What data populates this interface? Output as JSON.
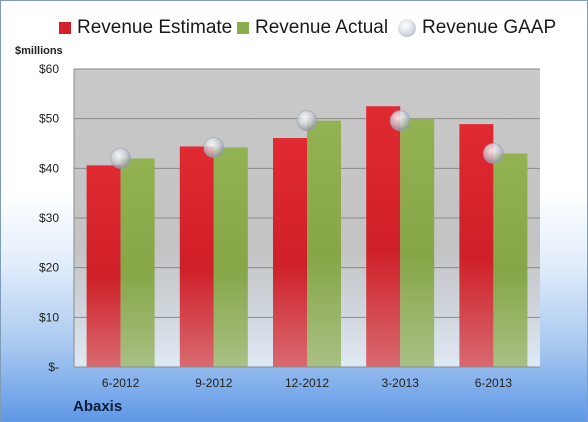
{
  "chart_data": {
    "type": "bar",
    "categories": [
      "6-2012",
      "9-2012",
      "12-2012",
      "3-2013",
      "6-2013"
    ],
    "series": [
      {
        "name": "Revenue Estimate",
        "kind": "bar",
        "color": "#d4202a",
        "values": [
          40.6,
          44.4,
          46.1,
          52.5,
          48.9
        ]
      },
      {
        "name": "Revenue Actual",
        "kind": "bar",
        "color": "#8dac4c",
        "values": [
          42.0,
          44.2,
          49.6,
          50.0,
          43.0
        ]
      },
      {
        "name": "Revenue GAAP",
        "kind": "scatter",
        "color": "#c8cad4",
        "values": [
          42.0,
          44.2,
          49.6,
          49.6,
          43.0
        ]
      }
    ],
    "ylabel": "$millions",
    "ylim": [
      0,
      60
    ],
    "yticks": [
      0,
      10,
      20,
      30,
      40,
      50,
      60
    ],
    "ytick_labels": [
      "$-",
      "$10",
      "$20",
      "$30",
      "$40",
      "$50",
      "$60"
    ],
    "grid": true,
    "legend_position": "top"
  },
  "company": "Abaxis"
}
